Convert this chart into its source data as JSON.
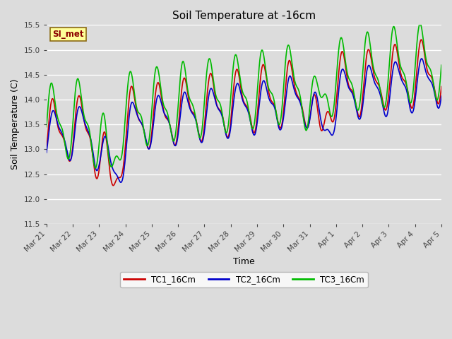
{
  "title": "Soil Temperature at -16cm",
  "xlabel": "Time",
  "ylabel": "Soil Temperature (C)",
  "ylim": [
    11.5,
    15.5
  ],
  "yticks": [
    11.5,
    12.0,
    12.5,
    13.0,
    13.5,
    14.0,
    14.5,
    15.0,
    15.5
  ],
  "bg_color": "#dcdcdc",
  "plot_bg_color": "#dcdcdc",
  "grid_color": "white",
  "annotation_text": "SI_met",
  "annotation_color": "#8b0000",
  "annotation_bg": "#ffff99",
  "annotation_border": "#8b6914",
  "series_tc1_color": "#cc0000",
  "series_tc2_color": "#0000cc",
  "series_tc3_color": "#00bb00",
  "linewidth": 1.2,
  "n_points": 1500,
  "x_end": 15,
  "xtick_labels": [
    "Mar 21",
    "Mar 22",
    "Mar 23",
    "Mar 24",
    "Mar 25",
    "Mar 26",
    "Mar 27",
    "Mar 28",
    "Mar 29",
    "Mar 30",
    "Mar 31",
    "Apr 1",
    "Apr 2",
    "Apr 3",
    "Apr 4",
    "Apr 5"
  ],
  "xtick_positions": [
    0,
    1,
    2,
    3,
    4,
    5,
    6,
    7,
    8,
    9,
    10,
    11,
    12,
    13,
    14,
    15
  ]
}
